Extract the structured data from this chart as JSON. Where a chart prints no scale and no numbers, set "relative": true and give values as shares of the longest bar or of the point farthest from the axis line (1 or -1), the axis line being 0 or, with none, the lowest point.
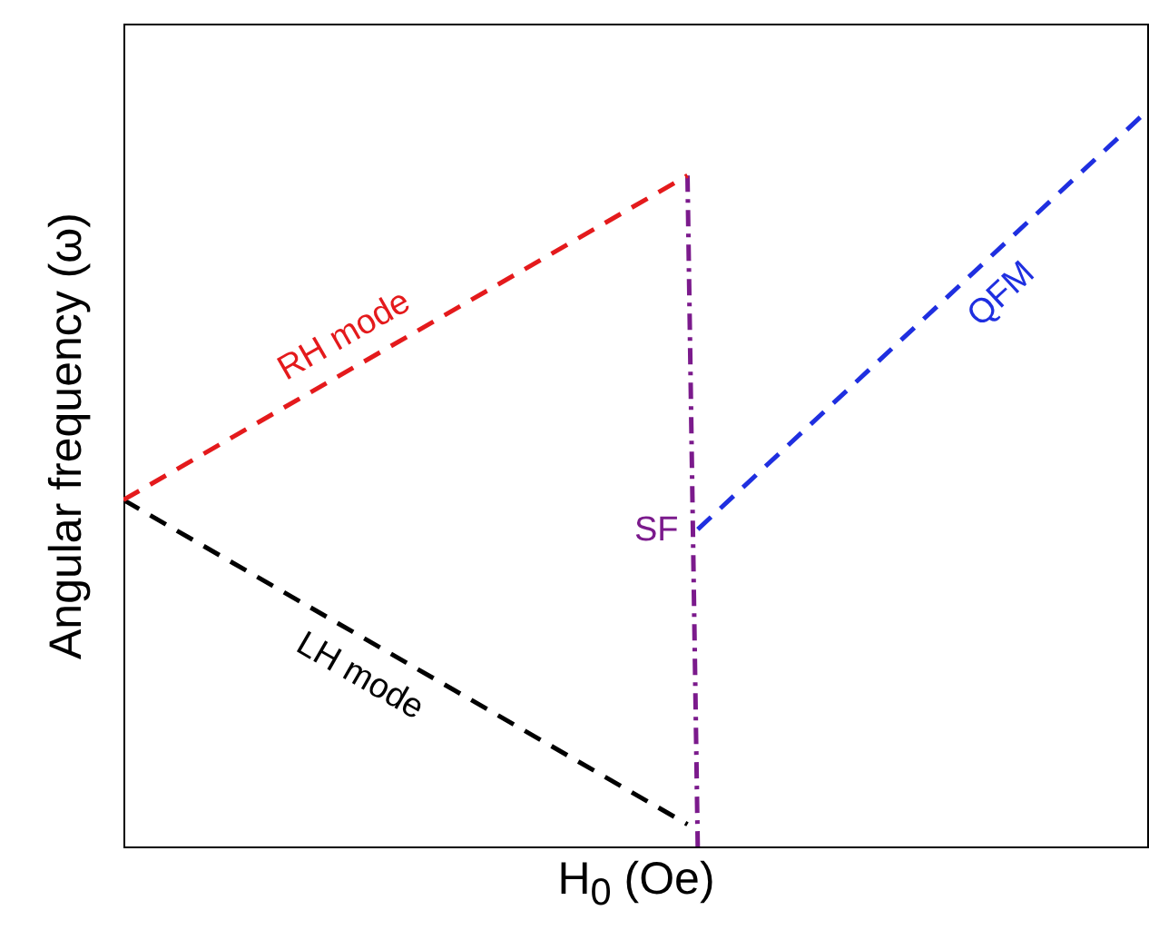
{
  "chart_data": {
    "type": "line",
    "relative": true,
    "xlabel": "H$_{0}$ (Oe)",
    "ylabel": "Angular frequency (ω)",
    "tick_labels": false,
    "grid": false,
    "legend": false,
    "marker": "none",
    "line_style": "dashed",
    "categories": [
      null,
      null,
      null,
      null,
      null,
      null,
      null,
      null,
      null,
      null,
      null,
      null,
      null,
      null,
      null,
      null,
      null,
      null,
      null,
      null,
      null,
      null,
      null,
      null,
      null,
      null,
      null,
      null,
      null,
      null,
      null,
      null,
      null,
      null,
      null,
      null,
      null,
      null,
      null,
      null,
      null,
      null,
      null,
      null,
      null,
      null,
      null,
      null,
      null,
      null,
      null,
      null,
      null,
      null,
      null,
      null,
      null,
      null,
      null,
      null,
      null,
      null,
      null,
      null,
      null,
      null,
      null,
      null,
      null,
      null,
      null,
      null,
      null,
      null,
      null,
      null,
      null,
      null,
      null,
      null,
      null,
      null,
      null,
      null,
      null,
      null,
      null,
      null,
      null,
      null,
      null,
      null,
      null,
      null,
      null,
      null,
      null,
      null,
      null,
      null,
      null
    ],
    "series": [
      {
        "name": "RH mode",
        "color": "#e41a1c",
        "values": [
          0.47,
          null,
          null,
          null,
          null,
          null,
          null,
          null,
          null,
          null,
          null,
          null,
          null,
          null,
          null,
          null,
          null,
          null,
          null,
          null,
          null,
          null,
          null,
          null,
          null,
          null,
          null,
          null,
          null,
          null,
          null,
          null,
          null,
          null,
          null,
          null,
          null,
          null,
          null,
          null,
          null,
          null,
          null,
          null,
          null,
          null,
          null,
          null,
          null,
          null,
          null,
          null,
          null,
          null,
          null,
          0.91,
          null,
          null,
          null,
          null,
          null,
          null,
          null,
          null,
          null,
          null,
          null,
          null,
          null,
          null,
          null,
          null,
          null,
          null,
          null,
          null,
          null,
          null,
          null,
          null,
          null,
          null,
          null,
          null,
          null,
          null,
          null,
          null,
          null,
          null,
          null,
          null,
          null,
          null,
          null,
          null,
          null,
          null,
          null,
          null,
          null
        ]
      },
      {
        "name": "LH mode",
        "color": "#000000",
        "values": [
          0.47,
          null,
          null,
          null,
          null,
          null,
          null,
          null,
          null,
          null,
          null,
          null,
          null,
          null,
          null,
          null,
          null,
          null,
          null,
          null,
          null,
          null,
          null,
          null,
          null,
          null,
          null,
          null,
          null,
          null,
          null,
          null,
          null,
          null,
          null,
          null,
          null,
          null,
          null,
          null,
          null,
          null,
          null,
          null,
          null,
          null,
          null,
          null,
          null,
          null,
          null,
          null,
          null,
          null,
          null,
          0.03,
          null,
          null,
          null,
          null,
          null,
          null,
          null,
          null,
          null,
          null,
          null,
          null,
          null,
          null,
          null,
          null,
          null,
          null,
          null,
          null,
          null,
          null,
          null,
          null,
          null,
          null,
          null,
          null,
          null,
          null,
          null,
          null,
          null,
          null,
          null,
          null,
          null,
          null,
          null,
          null,
          null,
          null,
          null,
          null,
          null
        ]
      },
      {
        "name": "SF",
        "color": "#7b1a8c",
        "line_style": "dashdot",
        "values": [
          null,
          null,
          null,
          null,
          null,
          null,
          null,
          null,
          null,
          null,
          null,
          null,
          null,
          null,
          null,
          null,
          null,
          null,
          null,
          null,
          null,
          null,
          null,
          null,
          null,
          null,
          null,
          null,
          null,
          null,
          null,
          null,
          null,
          null,
          null,
          null,
          null,
          null,
          null,
          null,
          null,
          null,
          null,
          null,
          null,
          null,
          null,
          null,
          null,
          null,
          null,
          null,
          null,
          null,
          null,
          0.91,
          0,
          null,
          null,
          null,
          null,
          null,
          null,
          null,
          null,
          null,
          null,
          null,
          null,
          null,
          null,
          null,
          null,
          null,
          null,
          null,
          null,
          null,
          null,
          null,
          null,
          null,
          null,
          null,
          null,
          null,
          null,
          null,
          null,
          null,
          null,
          null,
          null,
          null,
          null,
          null,
          null,
          null,
          null,
          null,
          null
        ]
      },
      {
        "name": "QFM",
        "color": "#1f2fe0",
        "values": [
          null,
          null,
          null,
          null,
          null,
          null,
          null,
          null,
          null,
          null,
          null,
          null,
          null,
          null,
          null,
          null,
          null,
          null,
          null,
          null,
          null,
          null,
          null,
          null,
          null,
          null,
          null,
          null,
          null,
          null,
          null,
          null,
          null,
          null,
          null,
          null,
          null,
          null,
          null,
          null,
          null,
          null,
          null,
          null,
          null,
          null,
          null,
          null,
          null,
          null,
          null,
          null,
          null,
          null,
          null,
          null,
          0.43,
          null,
          null,
          null,
          null,
          null,
          null,
          null,
          null,
          null,
          null,
          null,
          null,
          null,
          null,
          null,
          null,
          null,
          null,
          null,
          null,
          null,
          null,
          null,
          null,
          null,
          null,
          null,
          null,
          null,
          null,
          null,
          null,
          null,
          null,
          null,
          null,
          null,
          null,
          null,
          null,
          null,
          null,
          null,
          1
        ]
      }
    ]
  }
}
